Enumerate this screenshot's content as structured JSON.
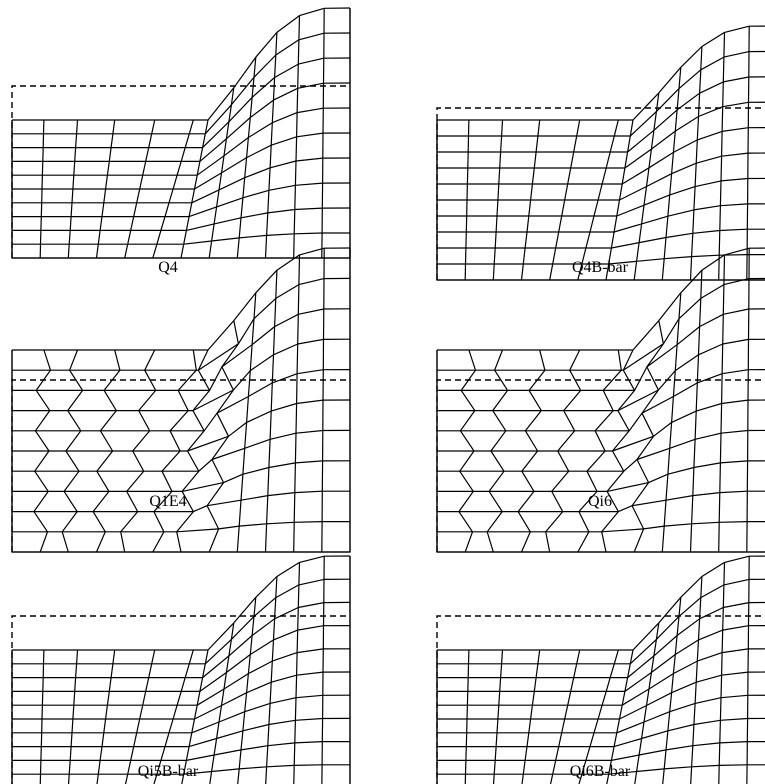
{
  "figure": {
    "panels": [
      {
        "id": "q4",
        "label": "Q4",
        "style": "smooth"
      },
      {
        "id": "q4b",
        "label": "Q4B-bar",
        "style": "bulge"
      },
      {
        "id": "q1e4",
        "label": "Q1E4",
        "style": "hourglass"
      },
      {
        "id": "qi6",
        "label": "Qi6",
        "style": "hourglass"
      },
      {
        "id": "qi5b",
        "label": "Qi5B-bar",
        "style": "bulge"
      },
      {
        "id": "qi6b",
        "label": "Qi6B-bar",
        "style": "bulge"
      }
    ]
  }
}
